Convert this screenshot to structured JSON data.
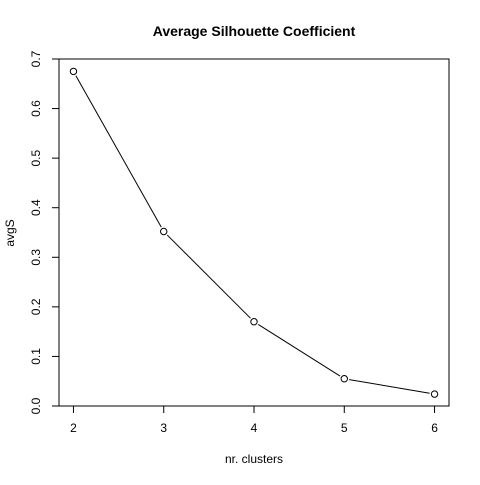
{
  "chart_data": {
    "type": "line",
    "title": "Average Silhouette Coefficient",
    "xlabel": "nr. clusters",
    "ylabel": "avgS",
    "x": [
      2,
      3,
      4,
      5,
      6
    ],
    "y": [
      0.675,
      0.352,
      0.17,
      0.055,
      0.024
    ],
    "xlim": [
      1.84,
      6.16
    ],
    "ylim": [
      0.0,
      0.7
    ],
    "xticks": [
      "2",
      "3",
      "4",
      "5",
      "6"
    ],
    "yticks": [
      "0.0",
      "0.1",
      "0.2",
      "0.3",
      "0.4",
      "0.5",
      "0.6",
      "0.7"
    ],
    "marker": "open-circle",
    "line_color": "#000000",
    "grid": false,
    "box": true
  }
}
